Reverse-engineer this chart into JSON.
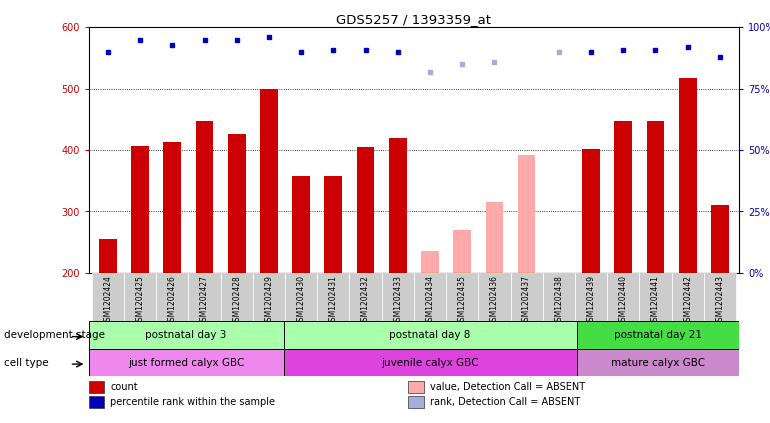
{
  "title": "GDS5257 / 1393359_at",
  "samples": [
    "GSM1202424",
    "GSM1202425",
    "GSM1202426",
    "GSM1202427",
    "GSM1202428",
    "GSM1202429",
    "GSM1202430",
    "GSM1202431",
    "GSM1202432",
    "GSM1202433",
    "GSM1202434",
    "GSM1202435",
    "GSM1202436",
    "GSM1202437",
    "GSM1202438",
    "GSM1202439",
    "GSM1202440",
    "GSM1202441",
    "GSM1202442",
    "GSM1202443"
  ],
  "counts": [
    255,
    407,
    413,
    447,
    427,
    500,
    358,
    358,
    405,
    420,
    null,
    null,
    null,
    null,
    null,
    402,
    447,
    447,
    518,
    310
  ],
  "counts_absent": [
    null,
    null,
    null,
    null,
    null,
    null,
    null,
    null,
    null,
    null,
    235,
    270,
    315,
    392,
    null,
    null,
    null,
    null,
    null,
    null
  ],
  "percentile_ranks": [
    90,
    95,
    93,
    95,
    95,
    96,
    90,
    91,
    91,
    90,
    null,
    null,
    null,
    null,
    null,
    90,
    91,
    91,
    92,
    88
  ],
  "percentile_ranks_absent": [
    null,
    null,
    null,
    null,
    null,
    null,
    null,
    null,
    null,
    null,
    82,
    85,
    86,
    null,
    90,
    null,
    null,
    null,
    null,
    null
  ],
  "bar_color_present": "#cc0000",
  "bar_color_absent": "#ffaaaa",
  "dot_color_present": "#0000bb",
  "dot_color_absent": "#aaaadd",
  "ylim_left": [
    200,
    600
  ],
  "ylim_right": [
    0,
    100
  ],
  "yticks_left": [
    200,
    300,
    400,
    500,
    600
  ],
  "yticks_right": [
    0,
    25,
    50,
    75,
    100
  ],
  "groups": [
    {
      "label": "postnatal day 3",
      "start": 0,
      "end": 6,
      "color": "#aaffaa"
    },
    {
      "label": "postnatal day 8",
      "start": 6,
      "end": 15,
      "color": "#aaffaa"
    },
    {
      "label": "postnatal day 21",
      "start": 15,
      "end": 20,
      "color": "#44dd44"
    }
  ],
  "cell_types": [
    {
      "label": "just formed calyx GBC",
      "start": 0,
      "end": 6,
      "color": "#ee88ee"
    },
    {
      "label": "juvenile calyx GBC",
      "start": 6,
      "end": 15,
      "color": "#dd44dd"
    },
    {
      "label": "mature calyx GBC",
      "start": 15,
      "end": 20,
      "color": "#cc88cc"
    }
  ],
  "dev_stage_label": "development stage",
  "cell_type_label": "cell type",
  "legend_items": [
    {
      "label": "count",
      "color": "#cc0000"
    },
    {
      "label": "percentile rank within the sample",
      "color": "#0000bb"
    },
    {
      "label": "value, Detection Call = ABSENT",
      "color": "#ffaaaa"
    },
    {
      "label": "rank, Detection Call = ABSENT",
      "color": "#aaaadd"
    }
  ],
  "bg_color": "#dddddd"
}
